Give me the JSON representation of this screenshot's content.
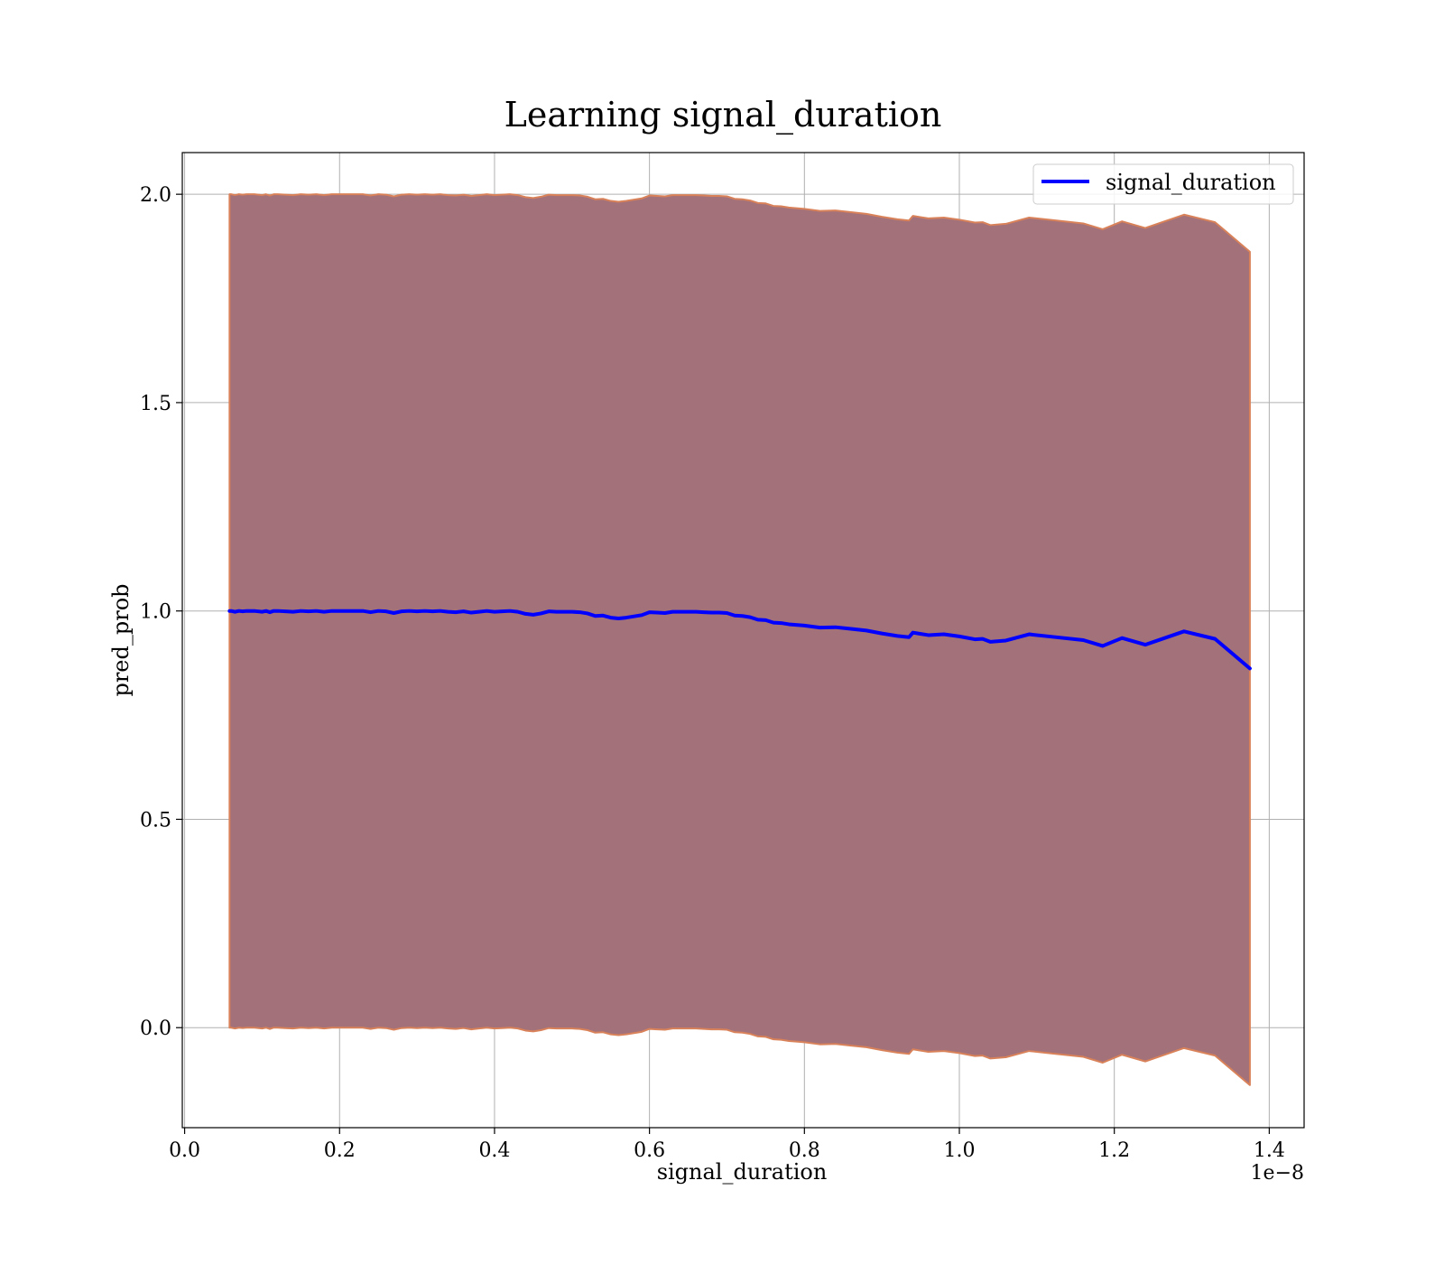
{
  "chart_data": {
    "type": "area",
    "title": "Learning signal_duration",
    "xlabel": "signal_duration",
    "ylabel": "pred_prob",
    "x_offset_label": "1e−8",
    "xlim": [
      -0.003,
      1.445
    ],
    "ylim": [
      -0.24,
      2.1
    ],
    "xticks": [
      0.0,
      0.2,
      0.4,
      0.6,
      0.8,
      1.0,
      1.2,
      1.4
    ],
    "xtick_labels": [
      "0.0",
      "0.2",
      "0.4",
      "0.6",
      "0.8",
      "1.0",
      "1.2",
      "1.4"
    ],
    "yticks": [
      0.0,
      0.5,
      1.0,
      1.5,
      2.0
    ],
    "ytick_labels": [
      "0.0",
      "0.5",
      "1.0",
      "1.5",
      "2.0"
    ],
    "grid": true,
    "legend_position": "top-right",
    "series": [
      {
        "name": "signal_duration",
        "color": "#0000ff",
        "band_color": "#a2717a",
        "band_edge_color": "#d9825a",
        "x": [
          0.058,
          0.06,
          0.065,
          0.07,
          0.075,
          0.08,
          0.09,
          0.1,
          0.105,
          0.11,
          0.115,
          0.12,
          0.13,
          0.14,
          0.15,
          0.16,
          0.17,
          0.18,
          0.19,
          0.2,
          0.21,
          0.22,
          0.23,
          0.24,
          0.25,
          0.26,
          0.27,
          0.28,
          0.29,
          0.3,
          0.31,
          0.32,
          0.33,
          0.34,
          0.35,
          0.36,
          0.37,
          0.38,
          0.39,
          0.4,
          0.41,
          0.42,
          0.43,
          0.44,
          0.45,
          0.46,
          0.47,
          0.48,
          0.49,
          0.5,
          0.51,
          0.52,
          0.53,
          0.54,
          0.55,
          0.56,
          0.57,
          0.58,
          0.59,
          0.6,
          0.61,
          0.62,
          0.63,
          0.64,
          0.65,
          0.66,
          0.67,
          0.68,
          0.69,
          0.7,
          0.71,
          0.72,
          0.73,
          0.74,
          0.75,
          0.76,
          0.77,
          0.78,
          0.8,
          0.82,
          0.84,
          0.86,
          0.88,
          0.9,
          0.92,
          0.935,
          0.94,
          0.96,
          0.98,
          1.0,
          1.02,
          1.03,
          1.04,
          1.06,
          1.09,
          1.12,
          1.16,
          1.185,
          1.21,
          1.24,
          1.29,
          1.33,
          1.375
        ],
        "y": [
          1.0,
          1.0,
          0.998,
          1.0,
          0.999,
          1.0,
          1.0,
          0.998,
          1.0,
          0.997,
          1.0,
          1.0,
          0.999,
          0.998,
          1.0,
          0.999,
          1.0,
          0.998,
          1.0,
          1.0,
          1.0,
          1.0,
          1.0,
          0.997,
          1.0,
          0.999,
          0.995,
          0.999,
          1.0,
          0.999,
          1.0,
          0.999,
          1.0,
          0.998,
          0.997,
          0.999,
          0.996,
          0.998,
          1.0,
          0.998,
          0.999,
          1.0,
          0.998,
          0.993,
          0.991,
          0.994,
          0.999,
          0.998,
          0.998,
          0.998,
          0.997,
          0.994,
          0.988,
          0.989,
          0.984,
          0.982,
          0.984,
          0.987,
          0.99,
          0.997,
          0.996,
          0.995,
          0.998,
          0.998,
          0.998,
          0.998,
          0.997,
          0.996,
          0.996,
          0.995,
          0.989,
          0.988,
          0.985,
          0.979,
          0.978,
          0.972,
          0.971,
          0.968,
          0.965,
          0.96,
          0.961,
          0.957,
          0.953,
          0.946,
          0.94,
          0.937,
          0.948,
          0.942,
          0.944,
          0.939,
          0.932,
          0.933,
          0.926,
          0.929,
          0.944,
          0.938,
          0.93,
          0.916,
          0.935,
          0.919,
          0.951,
          0.933,
          0.862
        ],
        "y_upper": [
          2.0,
          2.0,
          1.998,
          2.0,
          1.999,
          2.0,
          2.0,
          1.998,
          2.0,
          1.997,
          2.0,
          2.0,
          1.999,
          1.998,
          2.0,
          1.999,
          2.0,
          1.998,
          2.0,
          2.0,
          2.0,
          2.0,
          2.0,
          1.997,
          2.0,
          1.999,
          1.995,
          1.999,
          2.0,
          1.999,
          2.0,
          1.999,
          2.0,
          1.998,
          1.997,
          1.999,
          1.996,
          1.998,
          2.0,
          1.998,
          1.999,
          2.0,
          1.998,
          1.993,
          1.991,
          1.994,
          1.999,
          1.998,
          1.998,
          1.998,
          1.997,
          1.994,
          1.988,
          1.989,
          1.984,
          1.982,
          1.984,
          1.987,
          1.99,
          1.997,
          1.996,
          1.995,
          1.998,
          1.998,
          1.998,
          1.998,
          1.997,
          1.996,
          1.996,
          1.995,
          1.989,
          1.988,
          1.985,
          1.979,
          1.978,
          1.972,
          1.971,
          1.968,
          1.965,
          1.96,
          1.961,
          1.957,
          1.953,
          1.946,
          1.94,
          1.937,
          1.948,
          1.942,
          1.944,
          1.939,
          1.932,
          1.933,
          1.926,
          1.929,
          1.944,
          1.938,
          1.93,
          1.916,
          1.935,
          1.919,
          1.951,
          1.933,
          1.862
        ],
        "y_lower": [
          0.0,
          0.0,
          -0.002,
          0.0,
          -0.001,
          0.0,
          0.0,
          -0.002,
          0.0,
          -0.003,
          0.0,
          0.0,
          -0.001,
          -0.002,
          0.0,
          -0.001,
          0.0,
          -0.002,
          0.0,
          0.0,
          0.0,
          0.0,
          0.0,
          -0.003,
          0.0,
          -0.001,
          -0.005,
          -0.001,
          0.0,
          -0.001,
          0.0,
          -0.001,
          0.0,
          -0.002,
          -0.003,
          -0.001,
          -0.004,
          -0.002,
          0.0,
          -0.002,
          -0.001,
          0.0,
          -0.002,
          -0.007,
          -0.009,
          -0.006,
          -0.001,
          -0.002,
          -0.002,
          -0.002,
          -0.003,
          -0.006,
          -0.012,
          -0.011,
          -0.016,
          -0.018,
          -0.016,
          -0.013,
          -0.01,
          -0.003,
          -0.004,
          -0.005,
          -0.002,
          -0.002,
          -0.002,
          -0.002,
          -0.003,
          -0.004,
          -0.004,
          -0.005,
          -0.011,
          -0.012,
          -0.015,
          -0.021,
          -0.022,
          -0.028,
          -0.029,
          -0.032,
          -0.035,
          -0.04,
          -0.039,
          -0.043,
          -0.047,
          -0.054,
          -0.06,
          -0.063,
          -0.052,
          -0.058,
          -0.056,
          -0.061,
          -0.068,
          -0.067,
          -0.074,
          -0.071,
          -0.056,
          -0.062,
          -0.07,
          -0.084,
          -0.065,
          -0.081,
          -0.049,
          -0.067,
          -0.138
        ]
      }
    ]
  }
}
